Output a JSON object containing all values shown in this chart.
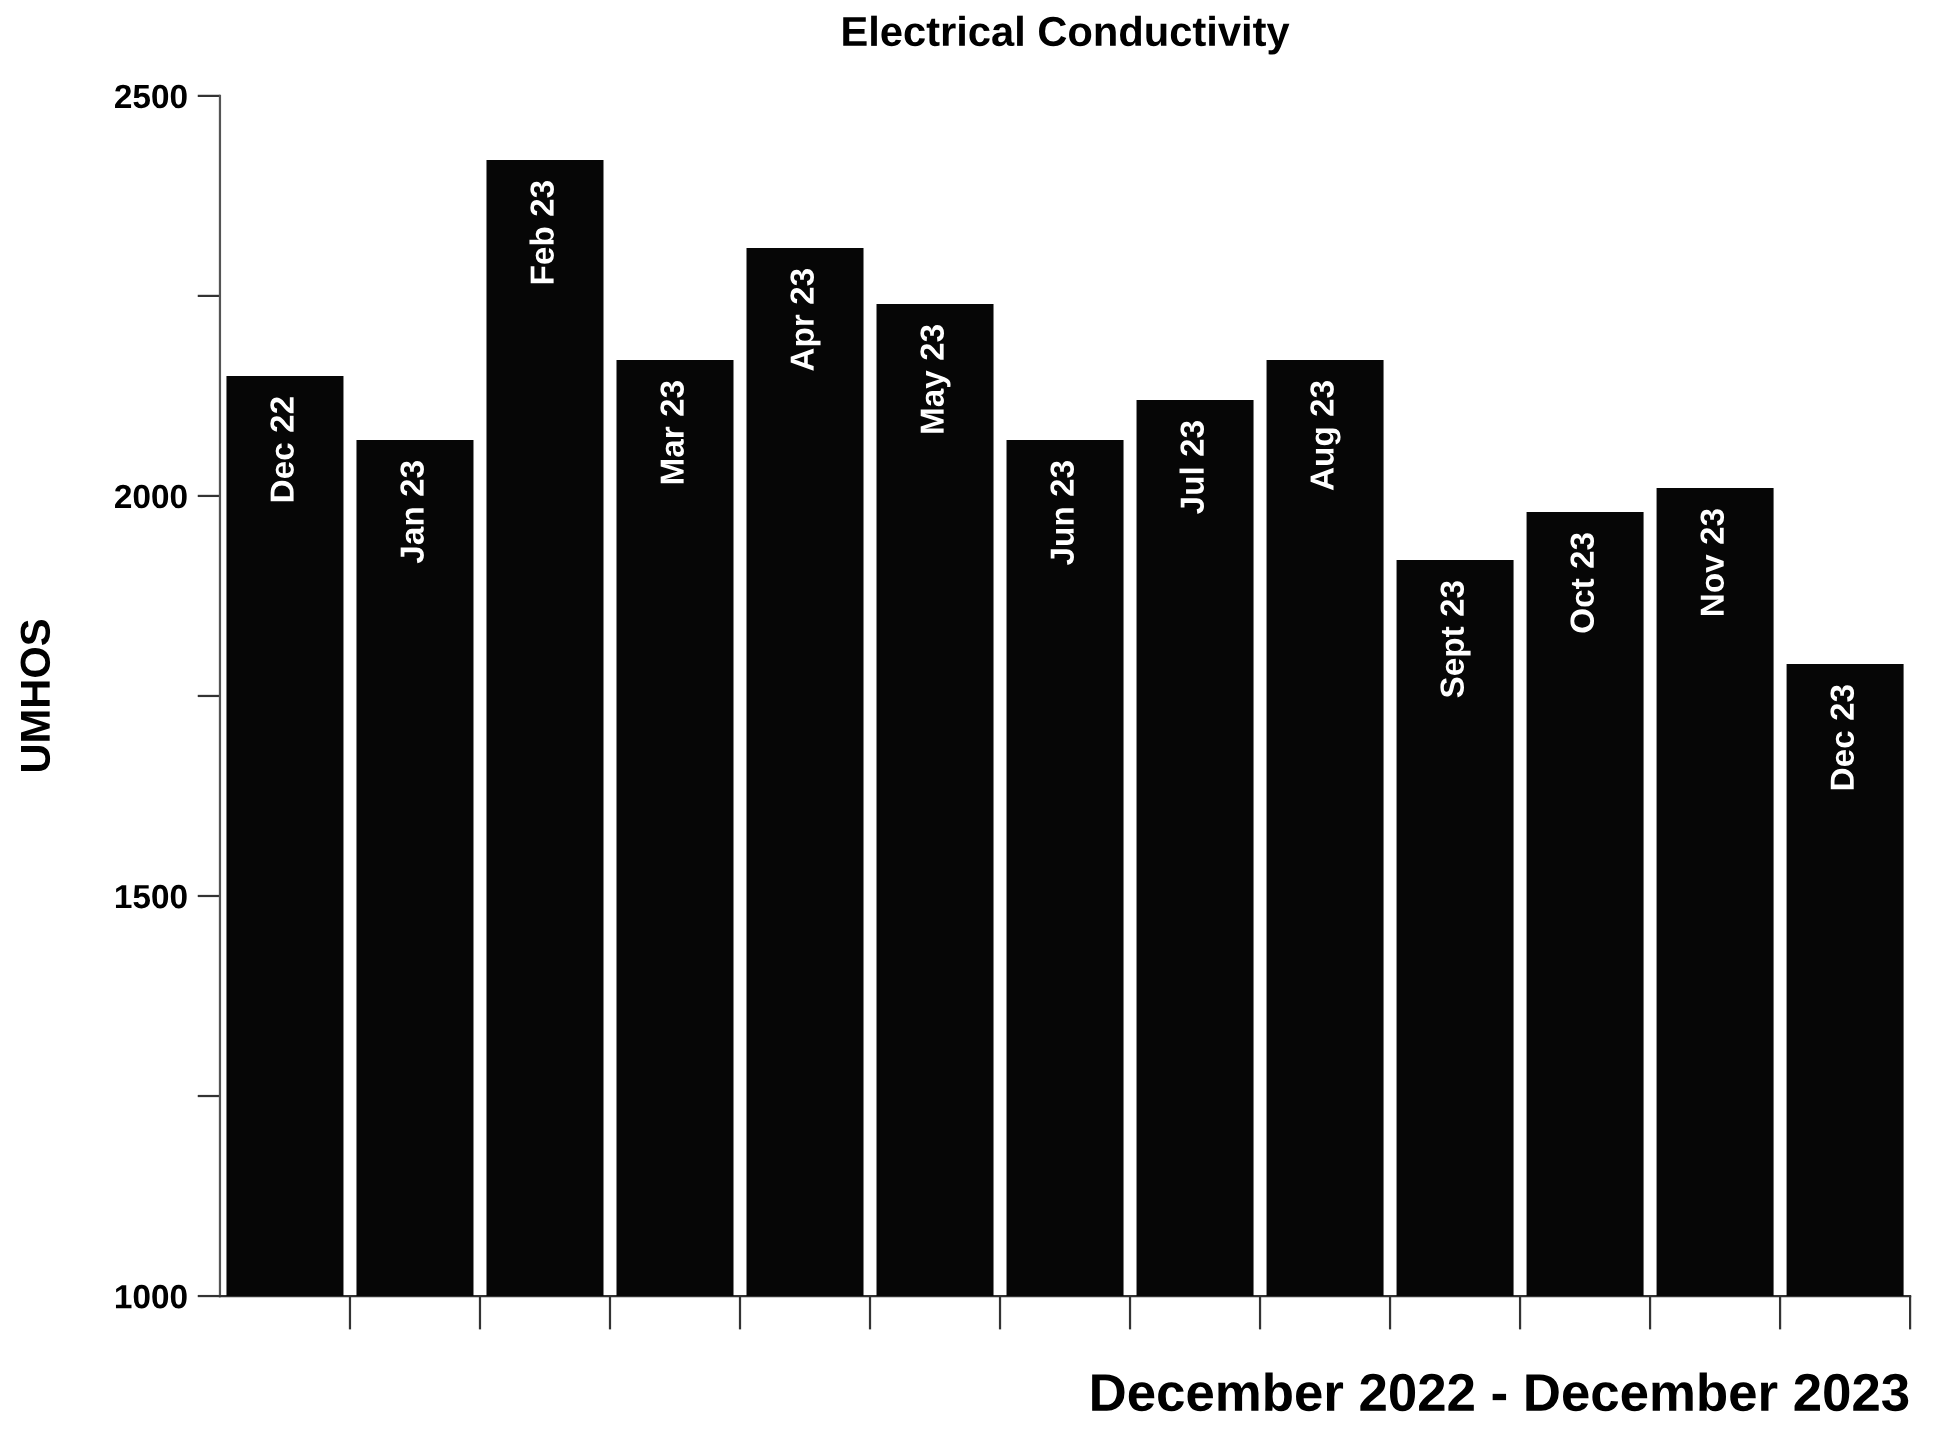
{
  "chart_data": {
    "type": "bar",
    "title": "Electrical Conductivity",
    "xlabel": "December 2022 - December 2023",
    "ylabel": "UMHOS",
    "categories": [
      "Dec 22",
      "Jan 23",
      "Feb 23",
      "Mar 23",
      "Apr 23",
      "May 23",
      "Jun 23",
      "Jul 23",
      "Aug 23",
      "Sept 23",
      "Oct 23",
      "Nov 23",
      "Dec 23"
    ],
    "values": [
      2150,
      2070,
      2420,
      2170,
      2310,
      2240,
      2070,
      2120,
      2170,
      1920,
      1980,
      2010,
      1790
    ],
    "color": "#060606",
    "ylim": [
      1000,
      2500
    ],
    "yticks": [
      1000,
      {
        "value": 1250,
        "label": null
      },
      1500,
      {
        "value": 1750,
        "label": null
      },
      2000,
      {
        "value": 2250,
        "label": null
      },
      2500
    ],
    "grid": false
  }
}
